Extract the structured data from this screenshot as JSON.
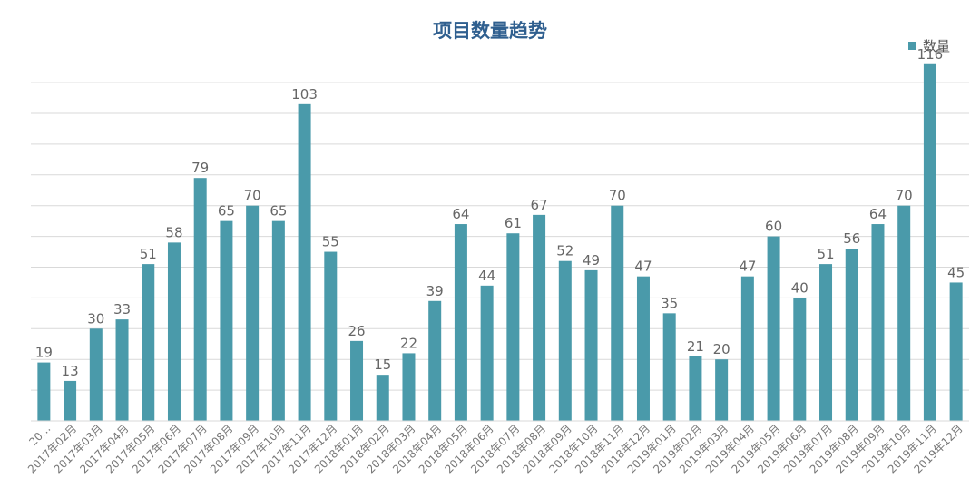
{
  "chart_data": {
    "type": "bar",
    "title": "项目数量趋势",
    "xlabel": "",
    "ylabel": "",
    "categories": [
      "20…",
      "2017年02月",
      "2017年03月",
      "2017年04月",
      "2017年05月",
      "2017年06月",
      "2017年07月",
      "2017年08月",
      "2017年09月",
      "2017年10月",
      "2017年11月",
      "2017年12月",
      "2018年01月",
      "2018年02月",
      "2018年03月",
      "2018年04月",
      "2018年05月",
      "2018年06月",
      "2018年07月",
      "2018年08月",
      "2018年09月",
      "2018年10月",
      "2018年11月",
      "2018年12月",
      "2019年01月",
      "2019年02月",
      "2019年03月",
      "2019年04月",
      "2019年05月",
      "2019年06月",
      "2019年07月",
      "2019年08月",
      "2019年09月",
      "2019年10月",
      "2019年11月",
      "2019年12月"
    ],
    "series": [
      {
        "name": "数量",
        "values": [
          19,
          13,
          30,
          33,
          51,
          58,
          79,
          65,
          70,
          65,
          103,
          55,
          26,
          15,
          22,
          39,
          64,
          44,
          61,
          67,
          52,
          49,
          70,
          47,
          35,
          21,
          20,
          47,
          60,
          40,
          51,
          56,
          64,
          70,
          116,
          45
        ]
      }
    ],
    "ylim": [
      0,
      120
    ],
    "grid": true,
    "legend_position": "top-right",
    "bar_color": "#4a9aaa"
  }
}
